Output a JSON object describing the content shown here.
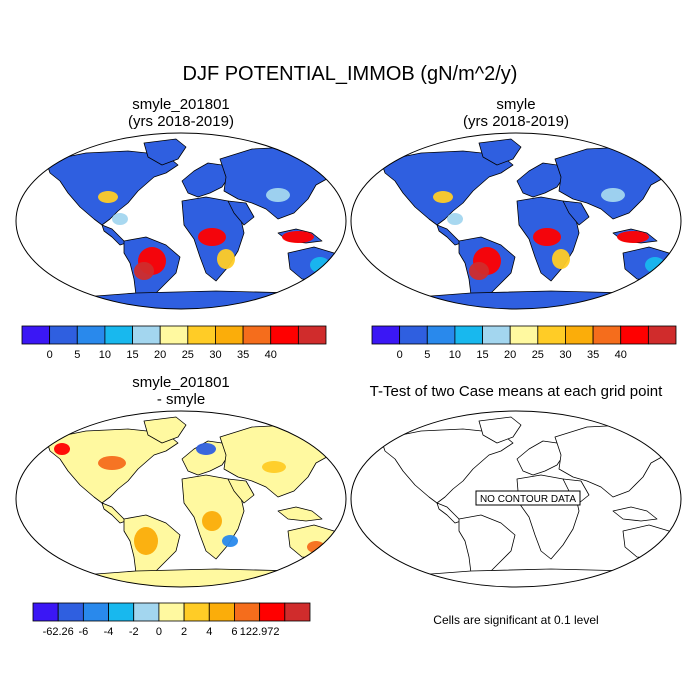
{
  "title": "DJF POTENTIAL_IMMOB (gN/m^2/y)",
  "panels": [
    {
      "title_line1": "smyle_201801",
      "title_line2": "(yrs 2018-2019)"
    },
    {
      "title_line1": "smyle",
      "title_line2": "(yrs 2018-2019)"
    },
    {
      "title_line1": "smyle_201801",
      "title_line2": "- smyle"
    },
    {
      "title_line1": "T-Test of two Case means at each grid point",
      "title_line2": ""
    }
  ],
  "colorbar_top": {
    "colors": [
      "#3b17f5",
      "#2f5fe0",
      "#2989ec",
      "#18b8ee",
      "#a3d6ef",
      "#fff9a0",
      "#ffcc26",
      "#fbad0a",
      "#f56d1c",
      "#ff0000",
      "#d02c2c"
    ],
    "labels": [
      "0",
      "5",
      "10",
      "15",
      "20",
      "25",
      "30",
      "35",
      "40"
    ]
  },
  "colorbar_diff": {
    "colors": [
      "#3b17f5",
      "#2f5fe0",
      "#2989ec",
      "#18b8ee",
      "#a3d6ef",
      "#fff9a0",
      "#ffcc26",
      "#fbad0a",
      "#f56d1c",
      "#ff0000",
      "#d02c2c"
    ],
    "labels": [
      "-62.26",
      "-6",
      "-4",
      "-2",
      "0",
      "2",
      "4",
      "6",
      "122.972"
    ]
  },
  "no_contour_label": "NO CONTOUR DATA",
  "significance_note": "Cells are significant at 0.1 level",
  "map_colors": {
    "ocean": "#ffffff",
    "background_land": "#2f5fe0",
    "diff_land": "#fff9a0"
  }
}
